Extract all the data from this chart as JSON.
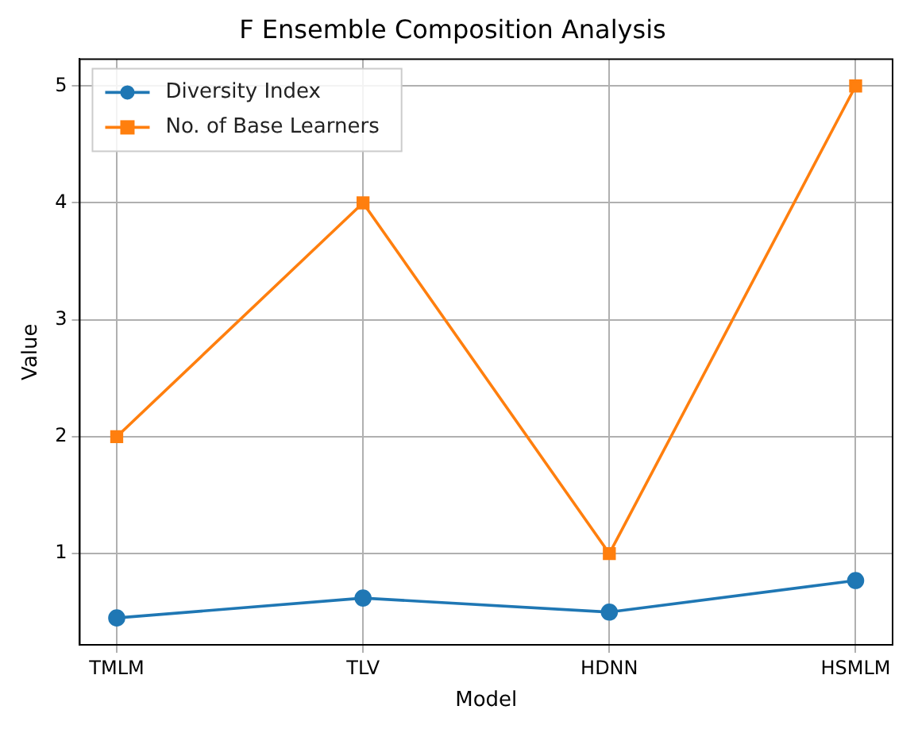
{
  "chart_data": {
    "type": "line",
    "title": "F Ensemble Composition Analysis",
    "xlabel": "Model",
    "ylabel": "Value",
    "categories": [
      "TMLM",
      "TLV",
      "HDNN",
      "HSMLM"
    ],
    "series": [
      {
        "name": "Diversity Index",
        "color": "#1f77b4",
        "values": [
          0.45,
          0.62,
          0.5,
          0.77
        ],
        "marker": "circle"
      },
      {
        "name": "No. of Base Learners",
        "color": "#ff7f0e",
        "values": [
          2,
          4,
          1,
          5
        ],
        "marker": "square"
      }
    ],
    "ylim": [
      0.22,
      5.23
    ],
    "yticks": [
      1,
      2,
      3,
      4,
      5
    ],
    "grid": true,
    "legend": "top left",
    "line_style": "solid"
  }
}
